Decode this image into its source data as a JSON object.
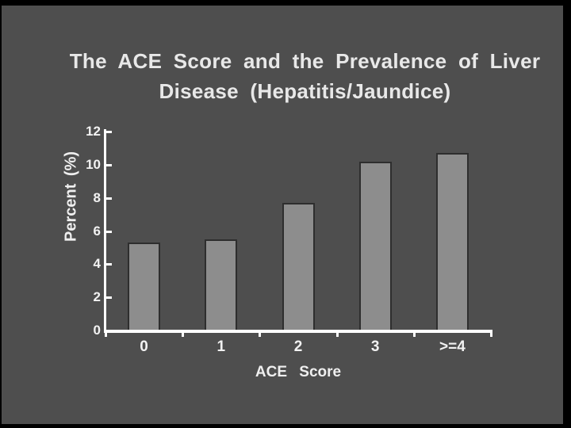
{
  "slide": {
    "title_line1": "The ACE Score and the Prevalence of Liver",
    "title_line2": "Disease  (Hepatitis/Jaundice)"
  },
  "chart_data": {
    "type": "bar",
    "title": "The ACE Score and the Prevalence of Liver Disease (Hepatitis/Jaundice)",
    "categories": [
      "0",
      "1",
      "2",
      "3",
      ">=4"
    ],
    "values": [
      5.3,
      5.5,
      7.7,
      10.2,
      10.7
    ],
    "xlabel": "ACE  Score",
    "ylabel": "Percent  (%)",
    "ylim": [
      0,
      12
    ],
    "yticks": [
      0,
      2,
      4,
      6,
      8,
      10,
      12
    ],
    "grid": false,
    "legend": null
  },
  "colors": {
    "frame": "#000000",
    "slide_bg": "#4e4e4e",
    "bar_fill": "#8d8d8d",
    "bar_border": "#2e2e2e",
    "axis": "#ffffff",
    "text": "#e8e8e8"
  }
}
